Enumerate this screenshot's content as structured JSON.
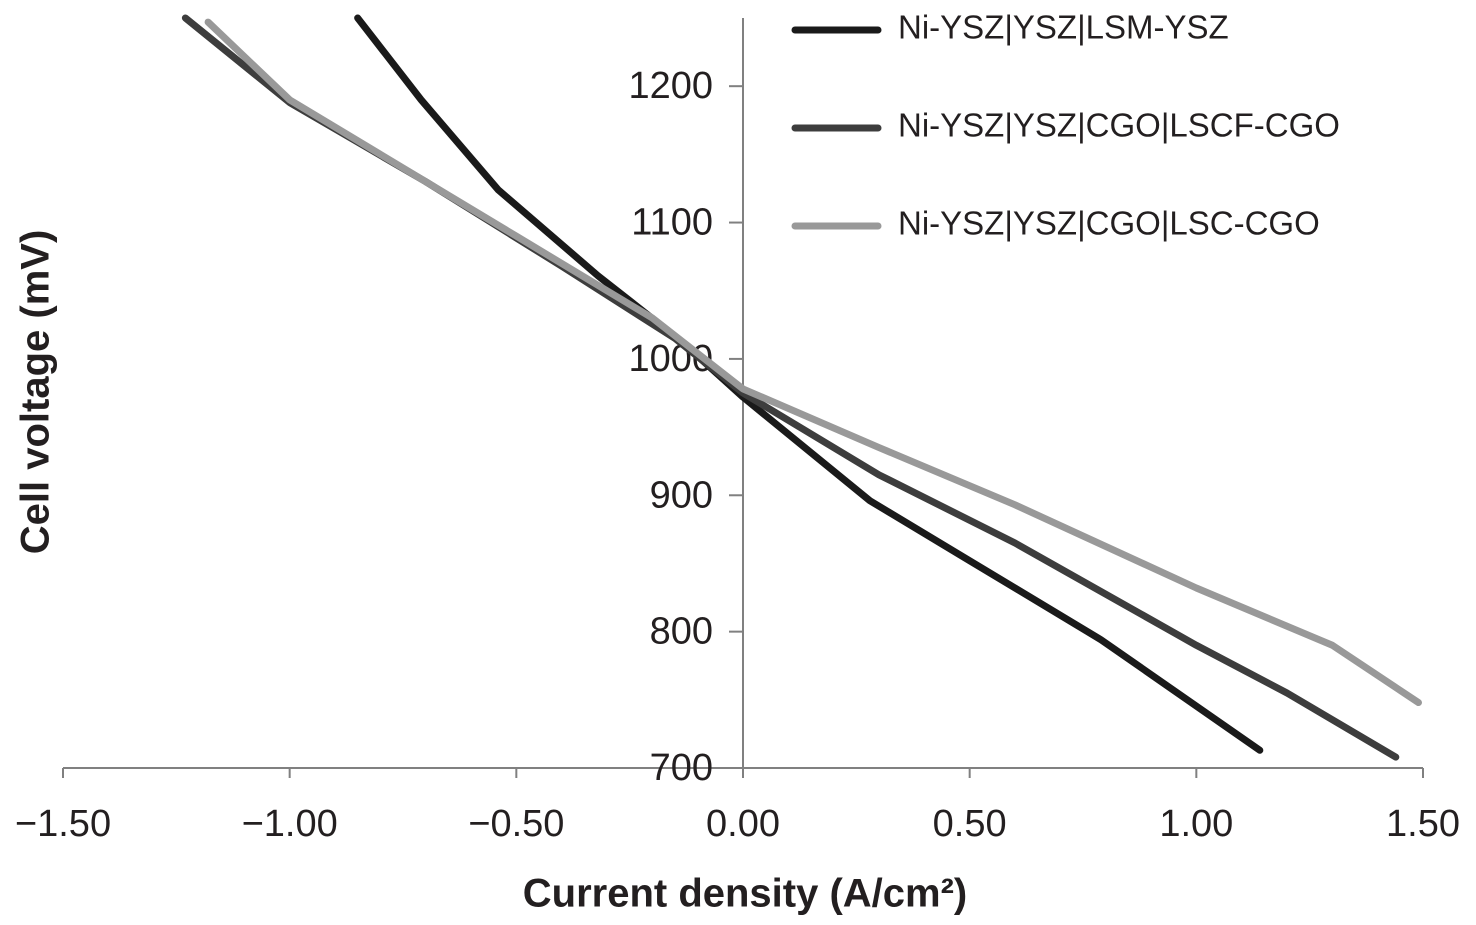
{
  "chart_data": {
    "type": "line",
    "xlabel": "Current density (A/cm²)",
    "ylabel": "Cell voltage (mV)",
    "xlim": [
      -1.5,
      1.5
    ],
    "ylim": [
      700,
      1250
    ],
    "xticks": [
      {
        "value": -1.5,
        "label": "−1.50"
      },
      {
        "value": -1.0,
        "label": "−1.00"
      },
      {
        "value": -0.5,
        "label": "−0.50"
      },
      {
        "value": 0,
        "label": "0.00"
      },
      {
        "value": 0.5,
        "label": "0.50"
      },
      {
        "value": 1.0,
        "label": "1.00"
      },
      {
        "value": 1.5,
        "label": "1.50"
      }
    ],
    "yticks": [
      700,
      800,
      900,
      1000,
      1100,
      1200
    ],
    "series": [
      {
        "name": "Ni-YSZ|YSZ|LSM-YSZ",
        "color": "#1a1a1a",
        "x": [
          -0.85,
          -0.71,
          -0.54,
          -0.32,
          -0.14,
          0,
          0.28,
          0.5,
          0.79,
          1.14
        ],
        "values": [
          1250,
          1190,
          1124,
          1061,
          1014,
          972,
          896,
          852,
          794,
          713
        ]
      },
      {
        "name": "Ni-YSZ|YSZ|CGO|LSCF-CGO",
        "color": "#3d3d3d",
        "x": [
          -1.23,
          -1.0,
          -0.7,
          -0.4,
          -0.15,
          0,
          0.3,
          0.6,
          1.0,
          1.2,
          1.44
        ],
        "values": [
          1250,
          1188,
          1130,
          1068,
          1015,
          975,
          915,
          865,
          790,
          755,
          708
        ]
      },
      {
        "name": "Ni-YSZ|YSZ|CGO|LSC-CGO",
        "color": "#999999",
        "x": [
          -1.18,
          -1.0,
          -0.8,
          -0.5,
          -0.2,
          0,
          0.3,
          0.6,
          1.0,
          1.3,
          1.49
        ],
        "values": [
          1247,
          1190,
          1150,
          1090,
          1030,
          978,
          935,
          893,
          832,
          790,
          748
        ]
      }
    ]
  }
}
